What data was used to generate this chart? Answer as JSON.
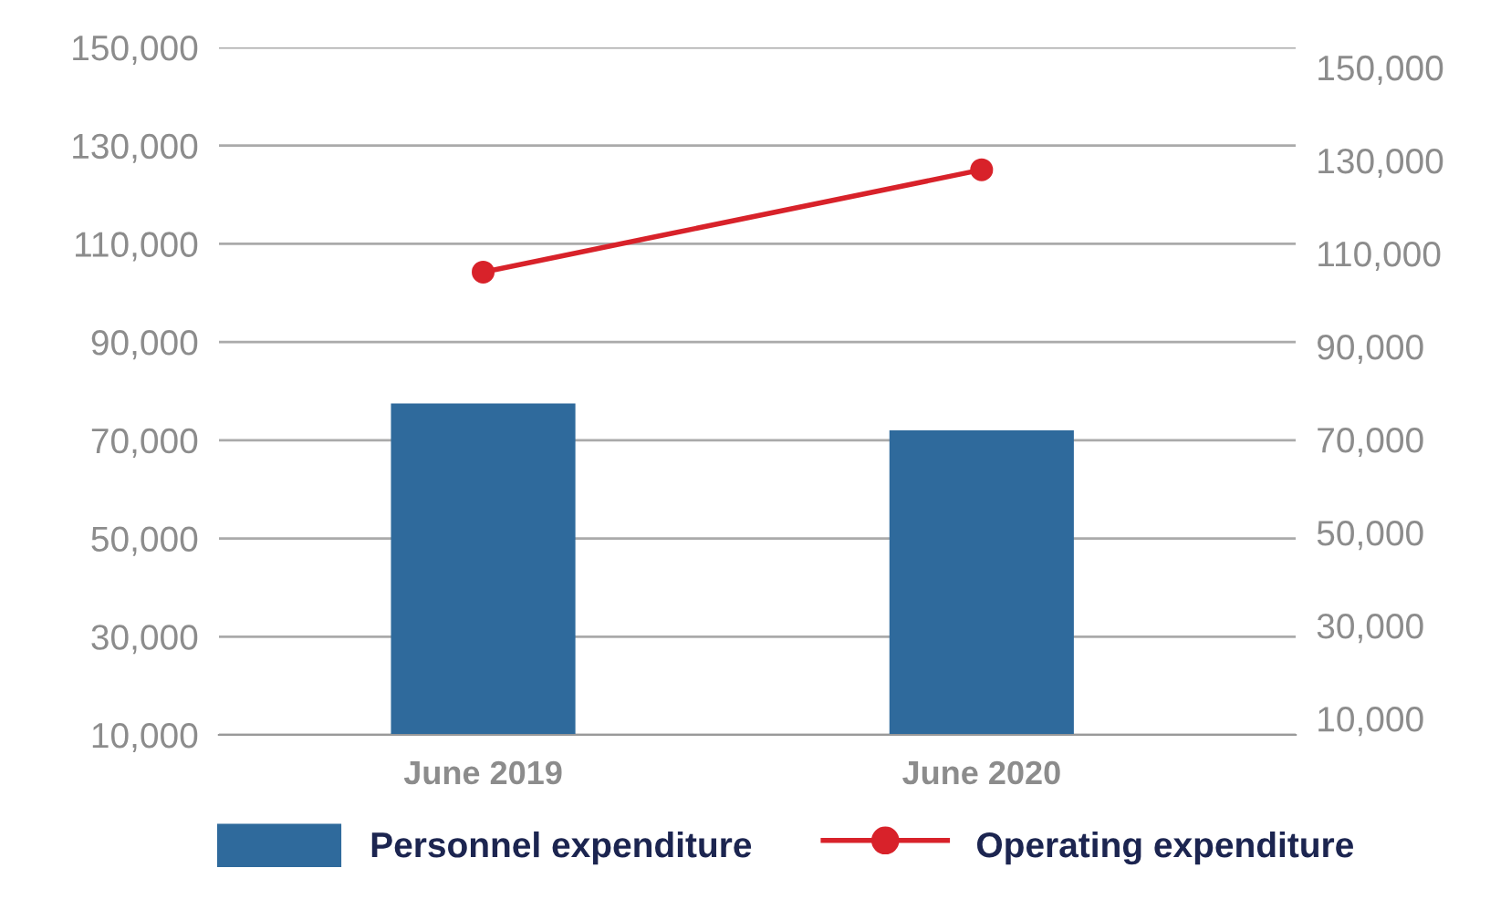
{
  "chart_data": {
    "type": "bar",
    "categories": [
      "June 2019",
      "June 2020"
    ],
    "series": [
      {
        "name": "Personnel expenditure",
        "color": "#2f6a9c",
        "values": [
          77500,
          72000
        ]
      },
      {
        "name": "Operating expenditure",
        "type": "line",
        "axis": "y2",
        "color": "#d8222a",
        "values": [
          106000,
          128000
        ]
      }
    ],
    "ylim": [
      10000,
      150000
    ],
    "yticks": [
      {
        "value": 10000,
        "label": "10,000"
      },
      {
        "value": 30000,
        "label": "30,000"
      },
      {
        "value": 50000,
        "label": "50,000"
      },
      {
        "value": 70000,
        "label": "70,000"
      },
      {
        "value": 90000,
        "label": "90,000"
      },
      {
        "value": 110000,
        "label": "110,000"
      },
      {
        "value": 130000,
        "label": "130,000"
      },
      {
        "value": 150000,
        "label": "150,000"
      }
    ],
    "y2lim": [
      6500,
      154300
    ],
    "y2ticks": [
      {
        "value": 10000,
        "label": "10,000"
      },
      {
        "value": 30000,
        "label": "30,000"
      },
      {
        "value": 50000,
        "label": "50,000"
      },
      {
        "value": 70000,
        "label": "70,000"
      },
      {
        "value": 90000,
        "label": "90,000"
      },
      {
        "value": 110000,
        "label": "110,000"
      },
      {
        "value": 130000,
        "label": "130,000"
      },
      {
        "value": 150000,
        "label": "150,000"
      }
    ],
    "grid": "y",
    "legend": "bottom",
    "marker": "circle",
    "line_style": "solid"
  }
}
